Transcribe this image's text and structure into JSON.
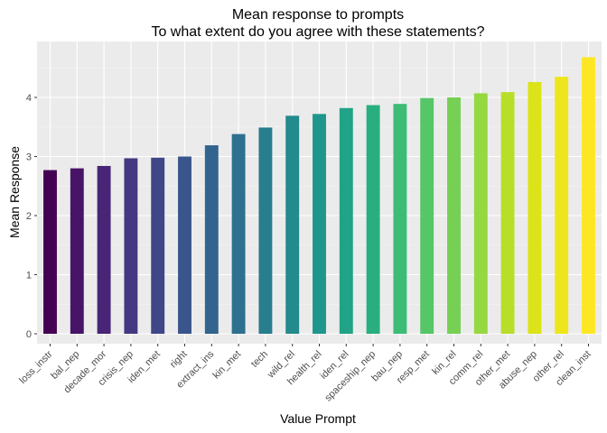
{
  "chart_data": {
    "type": "bar",
    "title": "Mean response to prompts",
    "subtitle": "To what extent do you agree with these statements?",
    "xlabel": "Value Prompt",
    "ylabel": "Mean Response",
    "ylim": [
      0,
      4.9
    ],
    "yticks": [
      0,
      1,
      2,
      3,
      4
    ],
    "grid": true,
    "legend": "none",
    "categories": [
      "loss_instr",
      "bal_nep",
      "decade_mor",
      "crisis_nep",
      "iden_met",
      "right",
      "extract_ins",
      "kin_met",
      "tech",
      "wild_rel",
      "health_rel",
      "iden_rel",
      "spaceship_nep",
      "bau_nep",
      "resp_met",
      "kin_rel",
      "comm_rel",
      "other_met",
      "abuse_nep",
      "other_rel",
      "clean_inst"
    ],
    "values": [
      2.77,
      2.8,
      2.84,
      2.97,
      2.98,
      3.0,
      3.19,
      3.38,
      3.49,
      3.69,
      3.72,
      3.82,
      3.87,
      3.89,
      3.99,
      4.0,
      4.07,
      4.09,
      4.26,
      4.35,
      4.68
    ],
    "colors": [
      "#440154",
      "#481467",
      "#482576",
      "#453781",
      "#3F4788",
      "#39558C",
      "#32648E",
      "#2D718E",
      "#287D8E",
      "#238A8D",
      "#1F968B",
      "#20A386",
      "#29AF7F",
      "#3CBC75",
      "#56C667",
      "#75D054",
      "#95D840",
      "#B8DE29",
      "#DCE318",
      "#EFE51C",
      "#FDE725"
    ]
  }
}
